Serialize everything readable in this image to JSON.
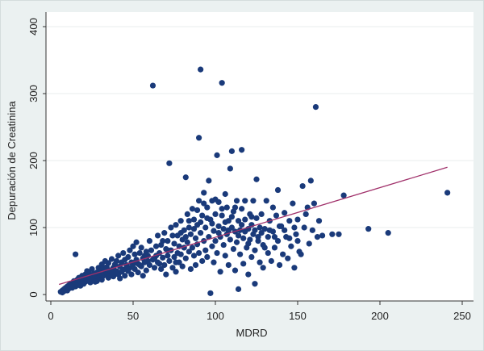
{
  "chart_data": {
    "type": "scatter",
    "title": "",
    "xlabel": "MDRD",
    "ylabel": "Depuración de Creatinina",
    "xlim": [
      0,
      250
    ],
    "ylim": [
      0,
      400
    ],
    "x_ticks": [
      0,
      50,
      100,
      150,
      200,
      250
    ],
    "y_ticks": [
      0,
      100,
      200,
      300,
      400
    ],
    "x_tick_labels": [
      "0",
      "50",
      "100",
      "150",
      "200",
      "250"
    ],
    "y_tick_labels": [
      "0",
      "100",
      "200",
      "300",
      "400"
    ],
    "grid": "horizontal",
    "legend": "none",
    "point_color": "#1a3a7a",
    "fit_line_color": "#a0306a",
    "background_color": "#ebf1f1",
    "plot_background_color": "#ffffff",
    "fit_line": {
      "x": [
        5,
        241
      ],
      "y": [
        15,
        190
      ]
    },
    "points": [
      [
        6,
        4
      ],
      [
        7,
        3
      ],
      [
        7,
        6
      ],
      [
        8,
        5
      ],
      [
        8,
        8
      ],
      [
        9,
        7
      ],
      [
        9,
        10
      ],
      [
        10,
        6
      ],
      [
        10,
        12
      ],
      [
        11,
        9
      ],
      [
        11,
        14
      ],
      [
        12,
        11
      ],
      [
        12,
        16
      ],
      [
        13,
        10
      ],
      [
        13,
        13
      ],
      [
        14,
        15
      ],
      [
        14,
        20
      ],
      [
        15,
        12
      ],
      [
        15,
        18
      ],
      [
        15,
        60
      ],
      [
        16,
        14
      ],
      [
        16,
        22
      ],
      [
        17,
        17
      ],
      [
        17,
        25
      ],
      [
        18,
        13
      ],
      [
        18,
        20
      ],
      [
        19,
        22
      ],
      [
        19,
        28
      ],
      [
        20,
        16
      ],
      [
        20,
        24
      ],
      [
        21,
        19
      ],
      [
        21,
        30
      ],
      [
        22,
        26
      ],
      [
        22,
        35
      ],
      [
        23,
        21
      ],
      [
        23,
        32
      ],
      [
        24,
        18
      ],
      [
        24,
        28
      ],
      [
        25,
        26
      ],
      [
        25,
        38
      ],
      [
        26,
        22
      ],
      [
        26,
        31
      ],
      [
        27,
        27
      ],
      [
        28,
        33
      ],
      [
        28,
        20
      ],
      [
        29,
        25
      ],
      [
        29,
        40
      ],
      [
        30,
        30
      ],
      [
        30,
        36
      ],
      [
        31,
        22
      ],
      [
        31,
        45
      ],
      [
        32,
        28
      ],
      [
        33,
        34
      ],
      [
        33,
        50
      ],
      [
        34,
        31
      ],
      [
        34,
        41
      ],
      [
        35,
        25
      ],
      [
        35,
        47
      ],
      [
        36,
        36
      ],
      [
        37,
        30
      ],
      [
        37,
        53
      ],
      [
        38,
        40
      ],
      [
        38,
        27
      ],
      [
        39,
        45
      ],
      [
        40,
        35
      ],
      [
        40,
        50
      ],
      [
        41,
        30
      ],
      [
        41,
        58
      ],
      [
        42,
        42
      ],
      [
        42,
        24
      ],
      [
        43,
        48
      ],
      [
        44,
        37
      ],
      [
        44,
        62
      ],
      [
        45,
        52
      ],
      [
        45,
        28
      ],
      [
        46,
        44
      ],
      [
        47,
        56
      ],
      [
        47,
        35
      ],
      [
        48,
        40
      ],
      [
        48,
        66
      ],
      [
        49,
        48
      ],
      [
        49,
        30
      ],
      [
        50,
        72
      ],
      [
        50,
        45
      ],
      [
        51,
        38
      ],
      [
        51,
        60
      ],
      [
        52,
        52
      ],
      [
        52,
        78
      ],
      [
        53,
        33
      ],
      [
        53,
        46
      ],
      [
        54,
        62
      ],
      [
        55,
        70
      ],
      [
        55,
        42
      ],
      [
        56,
        54
      ],
      [
        56,
        28
      ],
      [
        57,
        48
      ],
      [
        58,
        64
      ],
      [
        58,
        36
      ],
      [
        59,
        58
      ],
      [
        60,
        80
      ],
      [
        60,
        44
      ],
      [
        61,
        66
      ],
      [
        62,
        52
      ],
      [
        62,
        312
      ],
      [
        63,
        40
      ],
      [
        64,
        72
      ],
      [
        64,
        58
      ],
      [
        65,
        48
      ],
      [
        65,
        88
      ],
      [
        66,
        62
      ],
      [
        67,
        38
      ],
      [
        67,
        74
      ],
      [
        68,
        55
      ],
      [
        69,
        92
      ],
      [
        69,
        44
      ],
      [
        70,
        68
      ],
      [
        70,
        30
      ],
      [
        71,
        80
      ],
      [
        71,
        58
      ],
      [
        72,
        196
      ],
      [
        72,
        50
      ],
      [
        73,
        100
      ],
      [
        73,
        66
      ],
      [
        74,
        40
      ],
      [
        75,
        76
      ],
      [
        75,
        56
      ],
      [
        76,
        104
      ],
      [
        76,
        34
      ],
      [
        77,
        88
      ],
      [
        77,
        62
      ],
      [
        78,
        48
      ],
      [
        78,
        72
      ],
      [
        79,
        110
      ],
      [
        79,
        60
      ],
      [
        80,
        82
      ],
      [
        80,
        42
      ],
      [
        81,
        96
      ],
      [
        81,
        70
      ],
      [
        82,
        175
      ],
      [
        82,
        54
      ],
      [
        83,
        120
      ],
      [
        83,
        78
      ],
      [
        84,
        64
      ],
      [
        84,
        100
      ],
      [
        85,
        38
      ],
      [
        85,
        90
      ],
      [
        86,
        128
      ],
      [
        86,
        70
      ],
      [
        87,
        58
      ],
      [
        87,
        112
      ],
      [
        88,
        84
      ],
      [
        88,
        44
      ],
      [
        89,
        104
      ],
      [
        89,
        75
      ],
      [
        90,
        234
      ],
      [
        90,
        62
      ],
      [
        90,
        140
      ],
      [
        91,
        92
      ],
      [
        91,
        336
      ],
      [
        92,
        50
      ],
      [
        92,
        118
      ],
      [
        93,
        80
      ],
      [
        93,
        152
      ],
      [
        94,
        66
      ],
      [
        94,
        100
      ],
      [
        95,
        130
      ],
      [
        95,
        56
      ],
      [
        96,
        86
      ],
      [
        96,
        170
      ],
      [
        97,
        112
      ],
      [
        97,
        2
      ],
      [
        98,
        72
      ],
      [
        98,
        140
      ],
      [
        99,
        95
      ],
      [
        99,
        48
      ],
      [
        100,
        120
      ],
      [
        100,
        80
      ],
      [
        101,
        208
      ],
      [
        101,
        62
      ],
      [
        102,
        102
      ],
      [
        102,
        138
      ],
      [
        103,
        86
      ],
      [
        103,
        34
      ],
      [
        104,
        316
      ],
      [
        104,
        118
      ],
      [
        105,
        74
      ],
      [
        105,
        98
      ],
      [
        106,
        150
      ],
      [
        106,
        58
      ],
      [
        107,
        90
      ],
      [
        107,
        130
      ],
      [
        108,
        110
      ],
      [
        108,
        44
      ],
      [
        109,
        82
      ],
      [
        109,
        188
      ],
      [
        110,
        100
      ],
      [
        110,
        214
      ],
      [
        111,
        68
      ],
      [
        111,
        124
      ],
      [
        112,
        94
      ],
      [
        112,
        36
      ],
      [
        113,
        140
      ],
      [
        113,
        78
      ],
      [
        114,
        110
      ],
      [
        114,
        8
      ],
      [
        115,
        60
      ],
      [
        115,
        96
      ],
      [
        116,
        128
      ],
      [
        116,
        216
      ],
      [
        117,
        84
      ],
      [
        117,
        46
      ],
      [
        118,
        112
      ],
      [
        118,
        140
      ],
      [
        119,
        70
      ],
      [
        120,
        98
      ],
      [
        120,
        30
      ],
      [
        121,
        120
      ],
      [
        121,
        82
      ],
      [
        122,
        56
      ],
      [
        122,
        104
      ],
      [
        123,
        90
      ],
      [
        123,
        140
      ],
      [
        124,
        66
      ],
      [
        124,
        16
      ],
      [
        125,
        114
      ],
      [
        125,
        172
      ],
      [
        126,
        86
      ],
      [
        127,
        48
      ],
      [
        127,
        100
      ],
      [
        128,
        120
      ],
      [
        129,
        74
      ],
      [
        129,
        40
      ],
      [
        130,
        98
      ],
      [
        131,
        140
      ],
      [
        132,
        62
      ],
      [
        132,
        86
      ],
      [
        133,
        110
      ],
      [
        134,
        50
      ],
      [
        135,
        94
      ],
      [
        135,
        130
      ],
      [
        136,
        70
      ],
      [
        137,
        118
      ],
      [
        138,
        80
      ],
      [
        138,
        156
      ],
      [
        139,
        44
      ],
      [
        140,
        102
      ],
      [
        141,
        60
      ],
      [
        142,
        122
      ],
      [
        143,
        86
      ],
      [
        144,
        54
      ],
      [
        145,
        110
      ],
      [
        146,
        72
      ],
      [
        147,
        136
      ],
      [
        148,
        40
      ],
      [
        149,
        90
      ],
      [
        150,
        112
      ],
      [
        150,
        80
      ],
      [
        152,
        60
      ],
      [
        153,
        162
      ],
      [
        154,
        100
      ],
      [
        156,
        130
      ],
      [
        157,
        76
      ],
      [
        158,
        170
      ],
      [
        160,
        136
      ],
      [
        161,
        280
      ],
      [
        163,
        110
      ],
      [
        165,
        88
      ],
      [
        171,
        90
      ],
      [
        175,
        90
      ],
      [
        178,
        148
      ],
      [
        193,
        98
      ],
      [
        205,
        92
      ],
      [
        241,
        152
      ],
      [
        19,
        17
      ],
      [
        23,
        23
      ],
      [
        27,
        19
      ],
      [
        32,
        40
      ],
      [
        36,
        28
      ],
      [
        39,
        33
      ],
      [
        43,
        34
      ],
      [
        46,
        40
      ],
      [
        51,
        48
      ],
      [
        54,
        44
      ],
      [
        57,
        58
      ],
      [
        59,
        50
      ],
      [
        63,
        54
      ],
      [
        66,
        46
      ],
      [
        68,
        80
      ],
      [
        71,
        66
      ],
      [
        74,
        88
      ],
      [
        76,
        48
      ],
      [
        79,
        92
      ],
      [
        82,
        86
      ],
      [
        84,
        110
      ],
      [
        87,
        98
      ],
      [
        89,
        126
      ],
      [
        91,
        108
      ],
      [
        93,
        136
      ],
      [
        95,
        114
      ],
      [
        98,
        106
      ],
      [
        100,
        142
      ],
      [
        102,
        92
      ],
      [
        104,
        128
      ],
      [
        106,
        108
      ],
      [
        108,
        96
      ],
      [
        110,
        116
      ],
      [
        112,
        130
      ],
      [
        114,
        88
      ],
      [
        116,
        104
      ],
      [
        118,
        94
      ],
      [
        120,
        76
      ],
      [
        122,
        116
      ],
      [
        124,
        96
      ],
      [
        126,
        80
      ],
      [
        128,
        92
      ],
      [
        130,
        70
      ],
      [
        133,
        96
      ],
      [
        136,
        86
      ],
      [
        139,
        102
      ],
      [
        142,
        96
      ],
      [
        145,
        84
      ],
      [
        148,
        100
      ],
      [
        151,
        64
      ],
      [
        155,
        120
      ],
      [
        159,
        96
      ],
      [
        162,
        86
      ]
    ]
  }
}
